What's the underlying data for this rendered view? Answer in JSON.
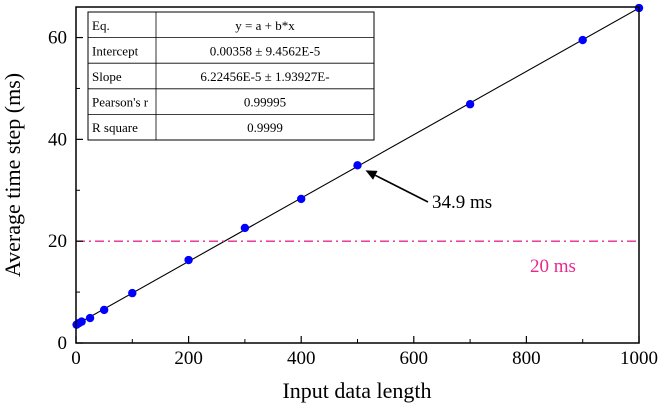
{
  "chart_data": {
    "type": "scatter",
    "xlabel": "Input data length",
    "ylabel": "Average time step (ms)",
    "xlim": [
      0,
      1000
    ],
    "ylim": [
      0,
      66
    ],
    "x_ticks": [
      "0",
      "200",
      "400",
      "600",
      "800",
      "1000"
    ],
    "y_ticks": [
      "0",
      "20",
      "40",
      "60"
    ],
    "grid": false,
    "series": [
      {
        "color": "#0000ff",
        "x": [
          1,
          5,
          10,
          25,
          50,
          100,
          200,
          300,
          400,
          500,
          700,
          900,
          1000
        ],
        "y": [
          3.6,
          3.9,
          4.2,
          4.9,
          6.5,
          9.8,
          16.3,
          22.6,
          28.3,
          34.9,
          46.9,
          59.5,
          65.8
        ]
      }
    ],
    "fit_line": {
      "color": "#000000",
      "x": [
        0,
        1000
      ],
      "y": [
        3.58,
        65.8
      ]
    },
    "reference_line": {
      "y": 20,
      "label": "20 ms",
      "color": "#e8288f"
    },
    "annotation": {
      "text": "34.9 ms",
      "x": 500,
      "y": 34.9
    },
    "stats_table": [
      {
        "label": "Eq.",
        "value": "y = a + b*x"
      },
      {
        "label": "Intercept",
        "value": "0.00358 ± 9.4562E-5"
      },
      {
        "label": "Slope",
        "value": "6.22456E-5 ± 1.93927E-"
      },
      {
        "label": "Pearson's r",
        "value": "0.99995"
      },
      {
        "label": "R square",
        "value": "0.9999"
      }
    ]
  }
}
